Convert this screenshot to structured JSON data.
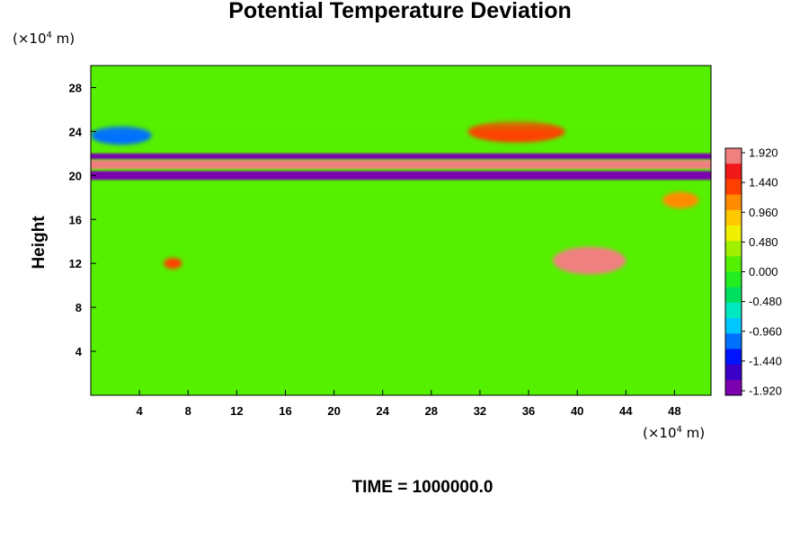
{
  "chart_data": {
    "type": "heatmap",
    "title": "Potential Temperature Deviation",
    "ylabel": "Height",
    "x_unit": "(×10",
    "y_unit": "(×10",
    "unit_exponent": "4",
    "unit_suffix": " m)",
    "footer": "TIME = 1000000.0",
    "xlim": [
      0,
      51
    ],
    "ylim": [
      0,
      30
    ],
    "x_ticks": [
      "4",
      "8",
      "12",
      "16",
      "20",
      "24",
      "28",
      "32",
      "36",
      "40",
      "44",
      "48"
    ],
    "y_ticks": [
      "4",
      "8",
      "12",
      "16",
      "20",
      "24",
      "28"
    ],
    "colorbar": {
      "min": -1.92,
      "max": 1.92,
      "labels": [
        "1.920",
        "1.440",
        "0.960",
        "0.480",
        "0.000",
        "-0.480",
        "-0.960",
        "-1.440",
        "-1.920"
      ]
    },
    "features": [
      {
        "name": "lower background",
        "x": [
          0,
          51
        ],
        "y": [
          0,
          19
        ],
        "value": 0.0
      },
      {
        "name": "warm layer",
        "x": [
          0,
          51
        ],
        "y": [
          20.6,
          21.4
        ],
        "value": 1.92
      },
      {
        "name": "cold layer",
        "x": [
          0,
          51
        ],
        "y": [
          19.6,
          20.4
        ],
        "value": -1.92
      },
      {
        "name": "cold layer upper",
        "x": [
          0,
          51
        ],
        "y": [
          21.5,
          22.0
        ],
        "value": -1.92
      },
      {
        "name": "warm patch",
        "x": [
          31,
          39
        ],
        "y": [
          23.0,
          25.0
        ],
        "value": 1.5
      },
      {
        "name": "cold patch",
        "x": [
          0,
          5
        ],
        "y": [
          22.8,
          24.5
        ],
        "value": -1.2
      },
      {
        "name": "warm patch",
        "x": [
          38,
          44
        ],
        "y": [
          11.0,
          13.5
        ],
        "value": 1.9
      },
      {
        "name": "warm patch",
        "x": [
          6,
          7.5
        ],
        "y": [
          11.5,
          12.5
        ],
        "value": 1.5
      },
      {
        "name": "warm patch",
        "x": [
          47,
          50
        ],
        "y": [
          17.0,
          18.5
        ],
        "value": 1.2
      },
      {
        "name": "upper background",
        "x": [
          0,
          51
        ],
        "y": [
          25,
          30
        ],
        "value": 0.25
      }
    ],
    "colors": {
      "frame": "#000000",
      "scale": [
        "#7a00b0",
        "#3a00c8",
        "#0014ff",
        "#0070ff",
        "#00c8ff",
        "#00e8c0",
        "#00e060",
        "#22ee22",
        "#55f000",
        "#a0f000",
        "#f0f000",
        "#ffc800",
        "#ff8c00",
        "#ff4000",
        "#f01818",
        "#f08080"
      ]
    }
  }
}
